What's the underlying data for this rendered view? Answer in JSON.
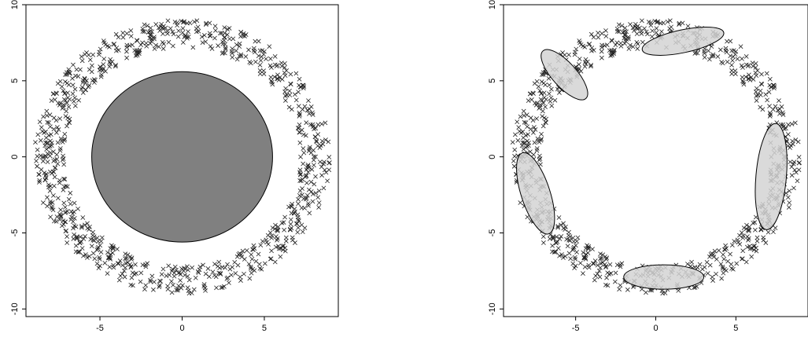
{
  "chart_data": [
    {
      "type": "scatter",
      "marker": "x",
      "title": "",
      "xlabel": "",
      "ylabel": "",
      "xlim": [
        -9.5,
        9.5
      ],
      "ylim": [
        -10.5,
        10
      ],
      "xticks": [
        -5,
        0,
        5
      ],
      "yticks": [
        -10,
        -5,
        0,
        5,
        10
      ],
      "grid": false,
      "point_color": "#222222",
      "ring": {
        "center": [
          0,
          0
        ],
        "radius_range": [
          7.2,
          9.0
        ],
        "n_points": 900
      },
      "overlays": [
        {
          "shape": "ellipse",
          "center": [
            0,
            0
          ],
          "rx": 5.5,
          "ry": 5.6,
          "angle_deg": 0,
          "fill": "#808080",
          "stroke": "#000000"
        }
      ]
    },
    {
      "type": "scatter",
      "marker": "x",
      "title": "",
      "xlabel": "",
      "ylabel": "",
      "xlim": [
        -9.5,
        9.5
      ],
      "ylim": [
        -10.5,
        10
      ],
      "xticks": [
        -5,
        0,
        5
      ],
      "yticks": [
        -10,
        -5,
        0,
        5,
        10
      ],
      "grid": false,
      "point_color": "#222222",
      "ring": {
        "center": [
          0,
          0
        ],
        "radius_range": [
          7.2,
          9.0
        ],
        "n_points": 900
      },
      "overlays": [
        {
          "shape": "ellipse",
          "center": [
            1.7,
            7.6
          ],
          "rx": 2.6,
          "ry": 0.75,
          "angle_deg": -12,
          "fill": "#d3d3d3",
          "stroke": "#000000"
        },
        {
          "shape": "ellipse",
          "center": [
            -5.7,
            5.4
          ],
          "rx": 2.0,
          "ry": 0.8,
          "angle_deg": 48,
          "fill": "#d3d3d3",
          "stroke": "#000000"
        },
        {
          "shape": "ellipse",
          "center": [
            7.2,
            -1.3
          ],
          "rx": 0.95,
          "ry": 3.5,
          "angle_deg": 5,
          "fill": "#d3d3d3",
          "stroke": "#000000"
        },
        {
          "shape": "ellipse",
          "center": [
            -7.5,
            -2.4
          ],
          "rx": 0.9,
          "ry": 2.8,
          "angle_deg": -18,
          "fill": "#d3d3d3",
          "stroke": "#000000"
        },
        {
          "shape": "ellipse",
          "center": [
            0.5,
            -7.9
          ],
          "rx": 2.5,
          "ry": 0.8,
          "angle_deg": 0,
          "fill": "#d3d3d3",
          "stroke": "#000000"
        }
      ]
    }
  ]
}
